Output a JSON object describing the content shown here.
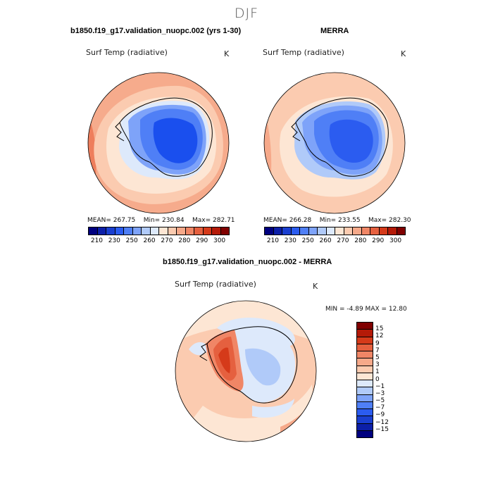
{
  "figure": {
    "season": "DJF"
  },
  "panels": {
    "model": {
      "title": "b1850.f19_g17.validation_nuopc.002 (yrs 1-30)",
      "variable": "Surf Temp (radiative)",
      "units": "K",
      "mean": "MEAN=  267.75",
      "min": "Min=  230.84",
      "max": "Max=  282.71"
    },
    "obs": {
      "title": "MERRA",
      "variable": "Surf Temp (radiative)",
      "units": "K",
      "mean": "MEAN=  266.28",
      "min": "Min=  233.55",
      "max": "Max=  282.30"
    },
    "diff": {
      "title": "b1850.f19_g17.validation_nuopc.002 - MERRA",
      "variable": "Surf Temp (radiative)",
      "units": "K",
      "minmax": "MIN =   -4.89  MAX =   12.80"
    }
  },
  "colorbars": {
    "abs": {
      "labels": [
        "210",
        "230",
        "250",
        "260",
        "270",
        "280",
        "290",
        "300"
      ],
      "colors": [
        "#00007f",
        "#0c1fa8",
        "#1a3fd0",
        "#2b5cf0",
        "#4f7ff6",
        "#7ea3f9",
        "#b0caf9",
        "#dde9fb",
        "#fde6d4",
        "#fbcbb0",
        "#f6a98a",
        "#f08666",
        "#e5603f",
        "#d53a1a",
        "#b41a08",
        "#800000"
      ]
    },
    "diff": {
      "labels": [
        "15",
        "12",
        "9",
        "7",
        "5",
        "3",
        "1",
        "0",
        "−1",
        "−3",
        "−5",
        "−7",
        "−9",
        "−12",
        "−15"
      ],
      "colors": [
        "#800000",
        "#b41a08",
        "#d53a1a",
        "#e5603f",
        "#f08666",
        "#f6a98a",
        "#fbcbb0",
        "#fde6d4",
        "#dde9fb",
        "#b0caf9",
        "#7ea3f9",
        "#4f7ff6",
        "#2b5cf0",
        "#1a3fd0",
        "#0c1fa8",
        "#00007f"
      ]
    }
  }
}
